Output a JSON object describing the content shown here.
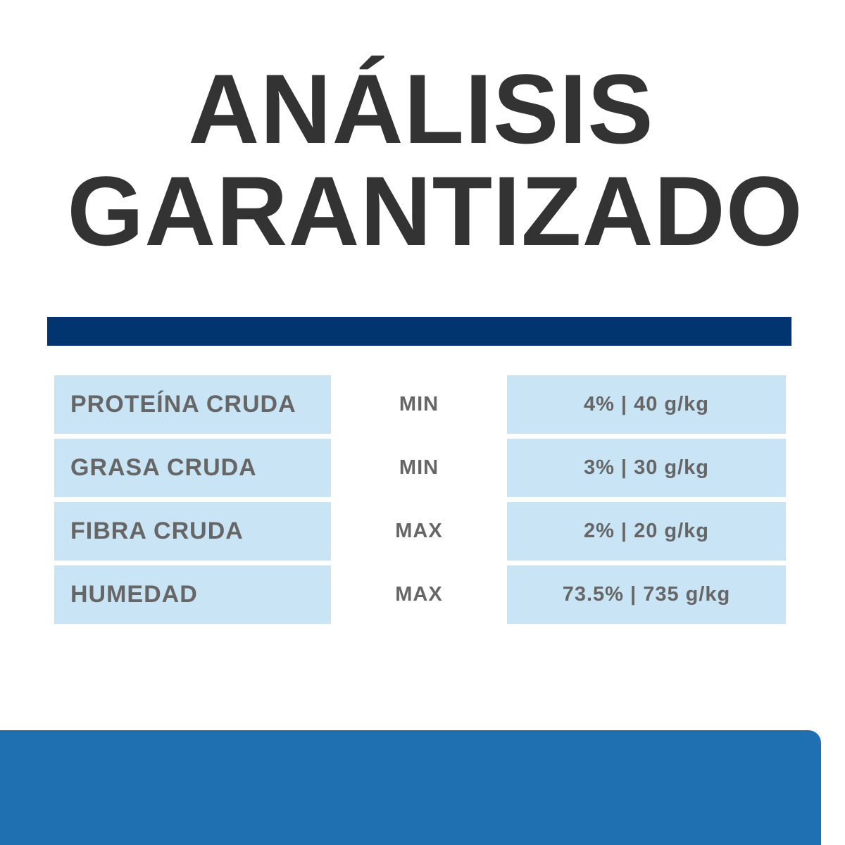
{
  "title": {
    "line1": "ANÁLISIS",
    "line2": "GARANTIZADO"
  },
  "colors": {
    "title": "#333333",
    "divider": "#003570",
    "cell": "#c8e4f5",
    "text": "#666666",
    "footer": "#1f70b0"
  },
  "rows": [
    {
      "nutrient": "PROTEÍNA CRUDA",
      "limit": "MIN",
      "value": "4% | 40 g/kg"
    },
    {
      "nutrient": "GRASA CRUDA",
      "limit": "MIN",
      "value": "3% | 30 g/kg"
    },
    {
      "nutrient": "FIBRA CRUDA",
      "limit": "MAX",
      "value": "2% | 20 g/kg"
    },
    {
      "nutrient": "HUMEDAD",
      "limit": "MAX",
      "value": "73.5% | 735 g/kg"
    }
  ]
}
